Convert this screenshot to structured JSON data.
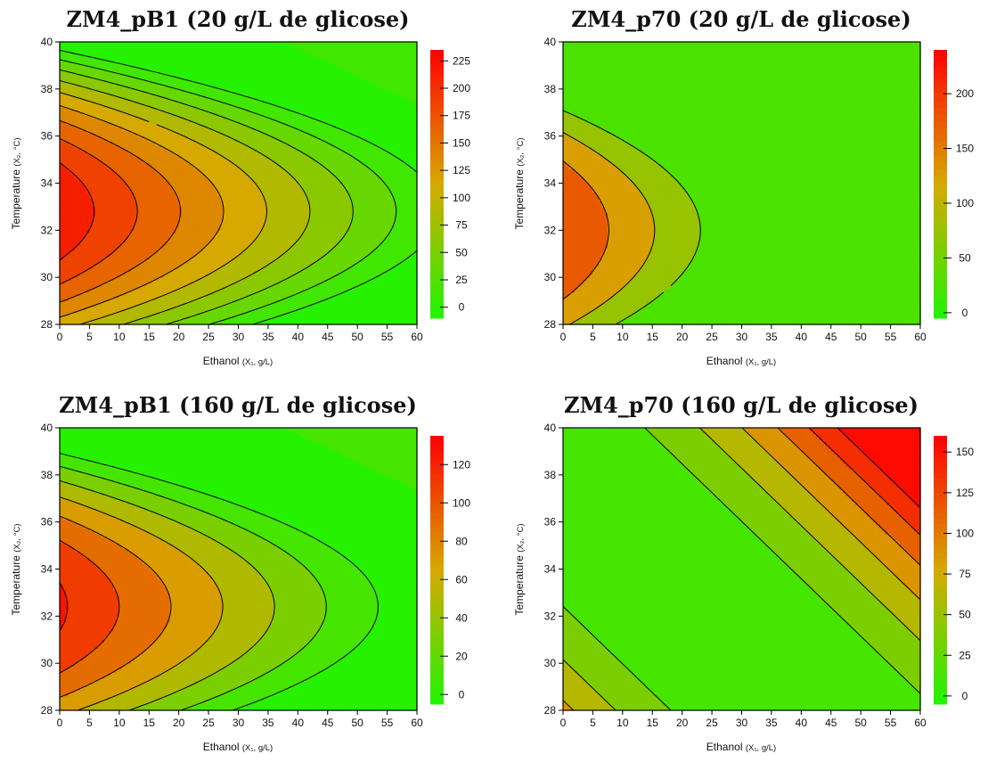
{
  "chart_data": [
    {
      "type": "heatmap",
      "subtype": "filled-contour",
      "title": "ZM4_pB1 (20 g/L de glicose)",
      "xlabel": "Ethanol",
      "xlabel_unit": "(X₁, g/L)",
      "ylabel": "Temperature",
      "ylabel_unit": "(X₂, °C)",
      "xlim": [
        0,
        60
      ],
      "ylim": [
        28,
        40
      ],
      "x_ticks": [
        0,
        5,
        10,
        15,
        20,
        25,
        30,
        35,
        40,
        45,
        50,
        55,
        60
      ],
      "y_ticks": [
        28,
        30,
        32,
        34,
        36,
        38,
        40
      ],
      "levels": [
        0,
        25,
        50,
        75,
        100,
        125,
        150,
        175,
        200,
        225
      ],
      "colorbar_range": [
        -10,
        235
      ],
      "surface": {
        "a": 220,
        "bx": -3.45,
        "cy": -4.7,
        "y0": 32.8,
        "sat": "steps"
      },
      "colors": [
        "#1ff500",
        "#d6a900",
        "#ff0000"
      ]
    },
    {
      "type": "heatmap",
      "subtype": "filled-contour",
      "title": "ZM4_p70 (20 g/L de glicose)",
      "xlabel": "Ethanol",
      "xlabel_unit": "(X₁, g/L)",
      "ylabel": "Temperature",
      "ylabel_unit": "(X₂, °C)",
      "xlim": [
        0,
        60
      ],
      "ylim": [
        28,
        40
      ],
      "x_ticks": [
        0,
        5,
        10,
        15,
        20,
        25,
        30,
        35,
        40,
        45,
        50,
        55,
        60
      ],
      "y_ticks": [
        28,
        30,
        32,
        34,
        36,
        38,
        40
      ],
      "levels": [
        0,
        50,
        100,
        150,
        200
      ],
      "colorbar_range": [
        -5,
        240
      ],
      "surface": {
        "a": 200,
        "bx": -6.5,
        "cy": -5.8,
        "y0": 32,
        "floor": 30
      },
      "colors": [
        "#1ff500",
        "#d6a900",
        "#ff0000"
      ]
    },
    {
      "type": "heatmap",
      "subtype": "filled-contour",
      "title": "ZM4_pB1 (160 g/L de glicose)",
      "xlabel": "Ethanol",
      "xlabel_unit": "(X₁, g/L)",
      "ylabel": "Temperature",
      "ylabel_unit": "(X₂, °C)",
      "xlim": [
        0,
        60
      ],
      "ylim": [
        28,
        40
      ],
      "x_ticks": [
        0,
        5,
        10,
        15,
        20,
        25,
        30,
        35,
        40,
        45,
        50,
        55,
        60
      ],
      "y_ticks": [
        28,
        30,
        32,
        34,
        36,
        38,
        40
      ],
      "levels": [
        0,
        20,
        40,
        60,
        80,
        100,
        120
      ],
      "colorbar_range": [
        -5,
        135
      ],
      "surface": {
        "a": 123,
        "bx": -2.3,
        "cy": -2.9,
        "y0": 32.4,
        "sat": "steps"
      },
      "colors": [
        "#1ff500",
        "#d6a900",
        "#ff0000"
      ]
    },
    {
      "type": "heatmap",
      "subtype": "filled-contour",
      "title": "ZM4_p70 (160 g/L de glicose)",
      "xlabel": "Ethanol",
      "xlabel_unit": "(X₁, g/L)",
      "ylabel": "Temperature",
      "ylabel_unit": "(X₂, °C)",
      "xlim": [
        0,
        60
      ],
      "ylim": [
        28,
        40
      ],
      "x_ticks": [
        0,
        5,
        10,
        15,
        20,
        25,
        30,
        35,
        40,
        45,
        50,
        55,
        60
      ],
      "y_ticks": [
        28,
        30,
        32,
        34,
        36,
        38,
        40
      ],
      "levels": [
        0,
        25,
        50,
        75,
        100,
        125,
        150
      ],
      "colorbar_range": [
        -5,
        160
      ],
      "surface": {
        "type": "tilted-bowl",
        "a": 150,
        "m": 4.1,
        "xmin": 42,
        "n": 2.05,
        "b": 0.05,
        "c": 0.15,
        "sat": "steps"
      },
      "colors": [
        "#1ff500",
        "#d6a900",
        "#ff0000"
      ]
    }
  ]
}
